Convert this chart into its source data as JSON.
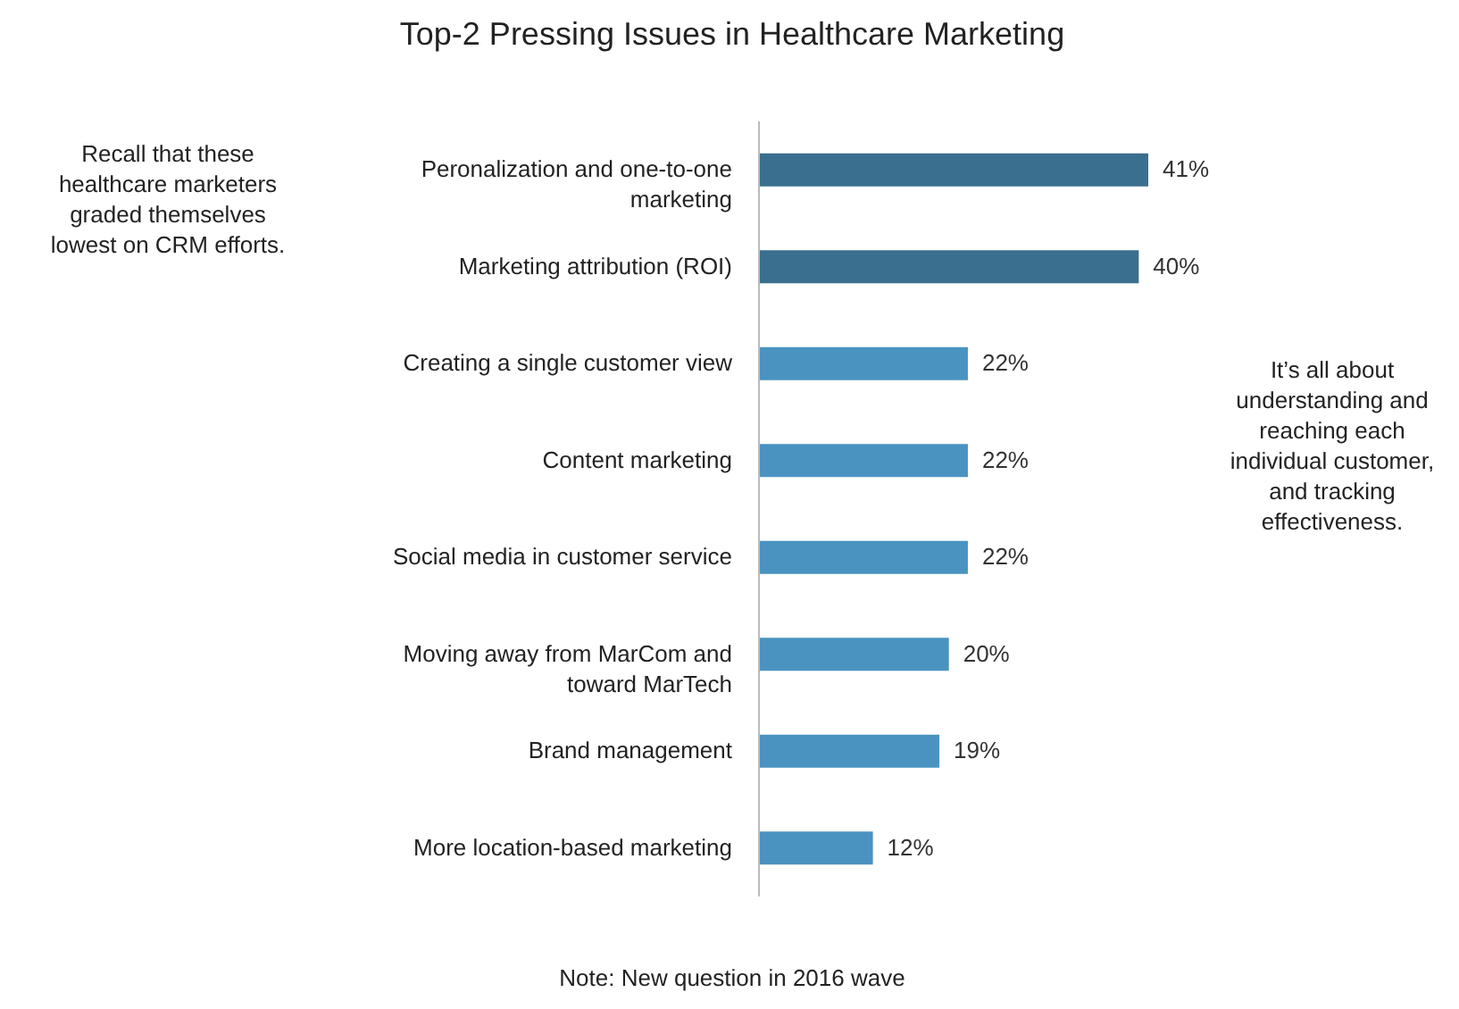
{
  "chart_data": {
    "type": "bar",
    "orientation": "horizontal",
    "title": "Top-2 Pressing Issues in Healthcare Marketing",
    "categories": [
      "Peronalization and one-to-one marketing",
      "Marketing attribution (ROI)",
      "Creating a single customer view",
      "Content marketing",
      "Social media in customer service",
      "Moving away from MarCom and toward MarTech",
      "Brand management",
      "More location-based marketing"
    ],
    "values": [
      41,
      40,
      22,
      22,
      22,
      20,
      19,
      12
    ],
    "value_labels": [
      "41%",
      "40%",
      "22%",
      "22%",
      "22%",
      "20%",
      "19%",
      "12%"
    ],
    "colors": [
      "#3a6f8f",
      "#3a6f8f",
      "#4a93c0",
      "#4a93c0",
      "#4a93c0",
      "#4a93c0",
      "#4a93c0",
      "#4a93c0"
    ],
    "annotations": [
      "Recall that these healthcare marketers graded themselves lowest on CRM efforts.",
      "It’s all about understanding and reaching each individual customer, and tracking effectiveness.",
      "Note: New question in 2016 wave"
    ],
    "data_labels": false
  }
}
